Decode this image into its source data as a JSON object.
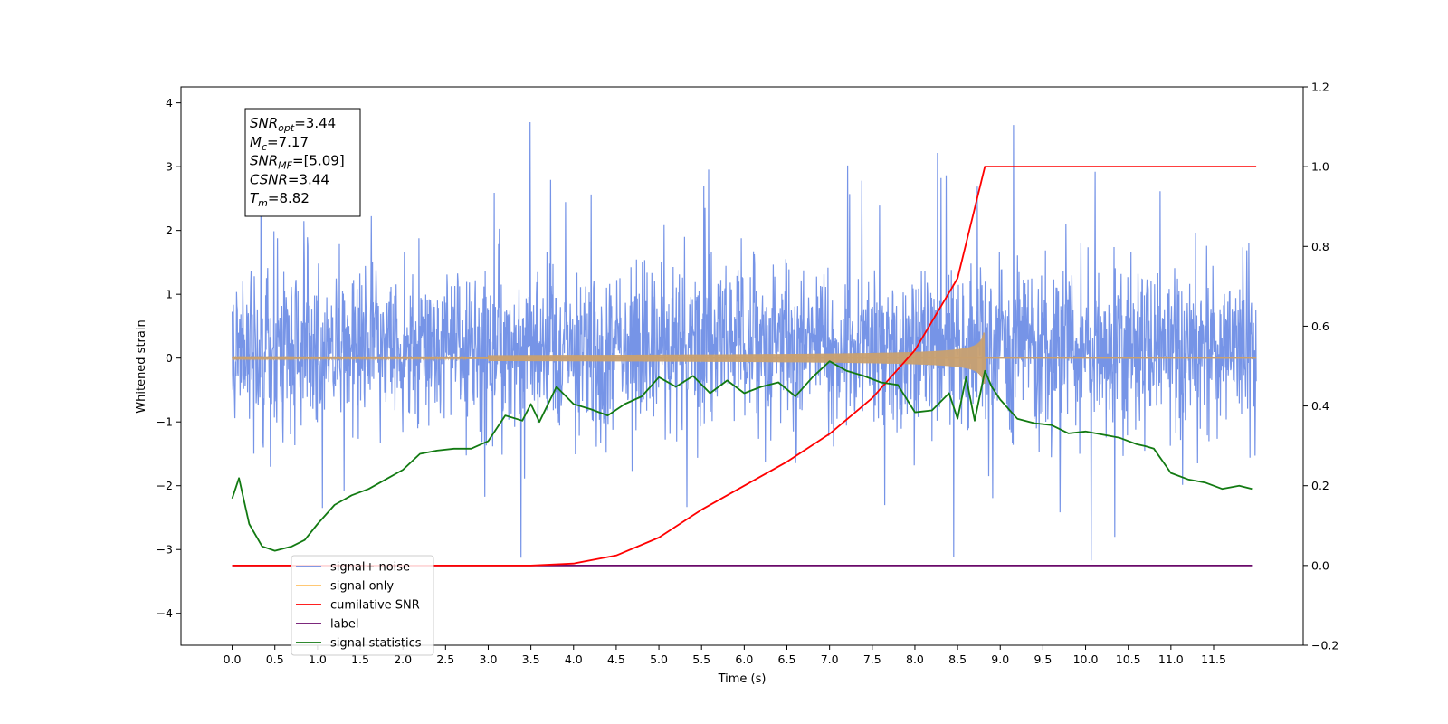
{
  "chart_data": {
    "type": "line",
    "xlabel": "Time (s)",
    "ylabel": "Whitened strain",
    "xlim": [
      -0.6,
      12.55
    ],
    "ylim": [
      -4.5,
      4.25
    ],
    "y2lim": [
      -0.2,
      1.2
    ],
    "x_ticks": [
      0.0,
      0.5,
      1.0,
      1.5,
      2.0,
      2.5,
      3.0,
      3.5,
      4.0,
      4.5,
      5.0,
      5.5,
      6.0,
      6.5,
      7.0,
      7.5,
      8.0,
      8.5,
      9.0,
      9.5,
      10.0,
      10.5,
      11.0,
      11.5
    ],
    "x_tick_labels": [
      "0.0",
      "0.5",
      "1.0",
      "1.5",
      "2.0",
      "2.5",
      "3.0",
      "3.5",
      "4.0",
      "4.5",
      "5.0",
      "5.5",
      "6.0",
      "6.5",
      "7.0",
      "7.5",
      "8.0",
      "8.5",
      "9.0",
      "9.5",
      "10.0",
      "10.5",
      "11.0",
      "11.5"
    ],
    "y_ticks": [
      -4,
      -3,
      -2,
      -1,
      0,
      1,
      2,
      3,
      4
    ],
    "y_tick_labels": [
      "−4",
      "−3",
      "−2",
      "−1",
      "0",
      "1",
      "2",
      "3",
      "4"
    ],
    "y2_ticks": [
      -0.2,
      0.0,
      0.2,
      0.4,
      0.6,
      0.8,
      1.0,
      1.2
    ],
    "y2_tick_labels": [
      "−0.2",
      "0.0",
      "0.2",
      "0.4",
      "0.6",
      "0.8",
      "1.0",
      "1.2"
    ],
    "grid": false,
    "legend_position": "lower-left",
    "series": [
      {
        "name": "signal+ noise",
        "axis": "left",
        "color": "#6f8ee6",
        "kind": "noise",
        "x_range": [
          0.0,
          12.0
        ],
        "approx_band": [
          -1.6,
          1.9
        ],
        "peaks": [
          3.88,
          3.66,
          3.52,
          3.47,
          3.44,
          3.31
        ]
      },
      {
        "name": "signal only",
        "axis": "left",
        "color": "#c8a070",
        "kind": "chirp",
        "x_range": [
          0.0,
          12.0
        ],
        "merger_time": 8.82,
        "peak_amplitude": 0.4
      },
      {
        "name": "cumilative SNR",
        "axis": "right",
        "color": "#ff0000",
        "x": [
          0.0,
          3.5,
          4.0,
          4.5,
          5.0,
          5.5,
          6.0,
          6.5,
          7.0,
          7.5,
          8.0,
          8.5,
          8.82,
          12.0
        ],
        "values": [
          0.0,
          0.0,
          0.005,
          0.025,
          0.07,
          0.14,
          0.2,
          0.26,
          0.33,
          0.42,
          0.54,
          0.72,
          1.0,
          1.0
        ]
      },
      {
        "name": "label",
        "axis": "right",
        "color": "#6a0a6a",
        "x": [
          0.0,
          11.95
        ],
        "values": [
          0.0,
          0.0
        ]
      },
      {
        "name": "signal statistics",
        "axis": "left",
        "color": "#127a12",
        "x": [
          0.0,
          0.08,
          0.2,
          0.35,
          0.5,
          0.7,
          0.85,
          1.0,
          1.2,
          1.4,
          1.6,
          1.8,
          2.0,
          2.2,
          2.4,
          2.6,
          2.8,
          3.0,
          3.2,
          3.4,
          3.5,
          3.6,
          3.8,
          4.0,
          4.2,
          4.4,
          4.6,
          4.8,
          5.0,
          5.2,
          5.4,
          5.6,
          5.8,
          6.0,
          6.2,
          6.4,
          6.6,
          6.8,
          7.0,
          7.2,
          7.4,
          7.6,
          7.8,
          8.0,
          8.2,
          8.4,
          8.5,
          8.6,
          8.7,
          8.82,
          8.9,
          9.0,
          9.2,
          9.4,
          9.6,
          9.8,
          10.0,
          10.2,
          10.4,
          10.6,
          10.7,
          10.8,
          11.0,
          11.2,
          11.4,
          11.6,
          11.8,
          11.95
        ],
        "values": [
          -2.2,
          -1.88,
          -2.6,
          -2.95,
          -3.02,
          -2.95,
          -2.85,
          -2.6,
          -2.3,
          -2.15,
          -2.05,
          -1.9,
          -1.75,
          -1.5,
          -1.45,
          -1.42,
          -1.42,
          -1.3,
          -0.9,
          -0.98,
          -0.72,
          -1.0,
          -0.45,
          -0.72,
          -0.8,
          -0.9,
          -0.72,
          -0.6,
          -0.3,
          -0.45,
          -0.28,
          -0.55,
          -0.35,
          -0.55,
          -0.45,
          -0.38,
          -0.6,
          -0.3,
          -0.05,
          -0.2,
          -0.28,
          -0.38,
          -0.42,
          -0.85,
          -0.82,
          -0.55,
          -0.95,
          -0.3,
          -0.98,
          -0.2,
          -0.45,
          -0.65,
          -0.95,
          -1.02,
          -1.05,
          -1.18,
          -1.15,
          -1.2,
          -1.25,
          -1.35,
          -1.38,
          -1.42,
          -1.8,
          -1.9,
          -1.95,
          -2.05,
          -2.0,
          -2.05
        ]
      }
    ],
    "annotation": {
      "lines": [
        {
          "name": "SNR",
          "sub": "opt",
          "value": "=3.44"
        },
        {
          "name": "M",
          "sub": "c",
          "value": "=7.17"
        },
        {
          "name": "SNR",
          "sub": "MF",
          "value": "=[5.09]"
        },
        {
          "name": "CSNR",
          "sub": "",
          "value": "=3.44"
        },
        {
          "name": "T",
          "sub": "m",
          "value": "=8.82"
        }
      ]
    },
    "legend": {
      "entries": [
        {
          "label": "signal+ noise",
          "color": "#6f8ee6"
        },
        {
          "label": "signal only",
          "color": "#ffc060"
        },
        {
          "label": "cumilative SNR",
          "color": "#ff0000"
        },
        {
          "label": "label",
          "color": "#6a0a6a"
        },
        {
          "label": "signal statistics",
          "color": "#127a12"
        }
      ]
    }
  }
}
